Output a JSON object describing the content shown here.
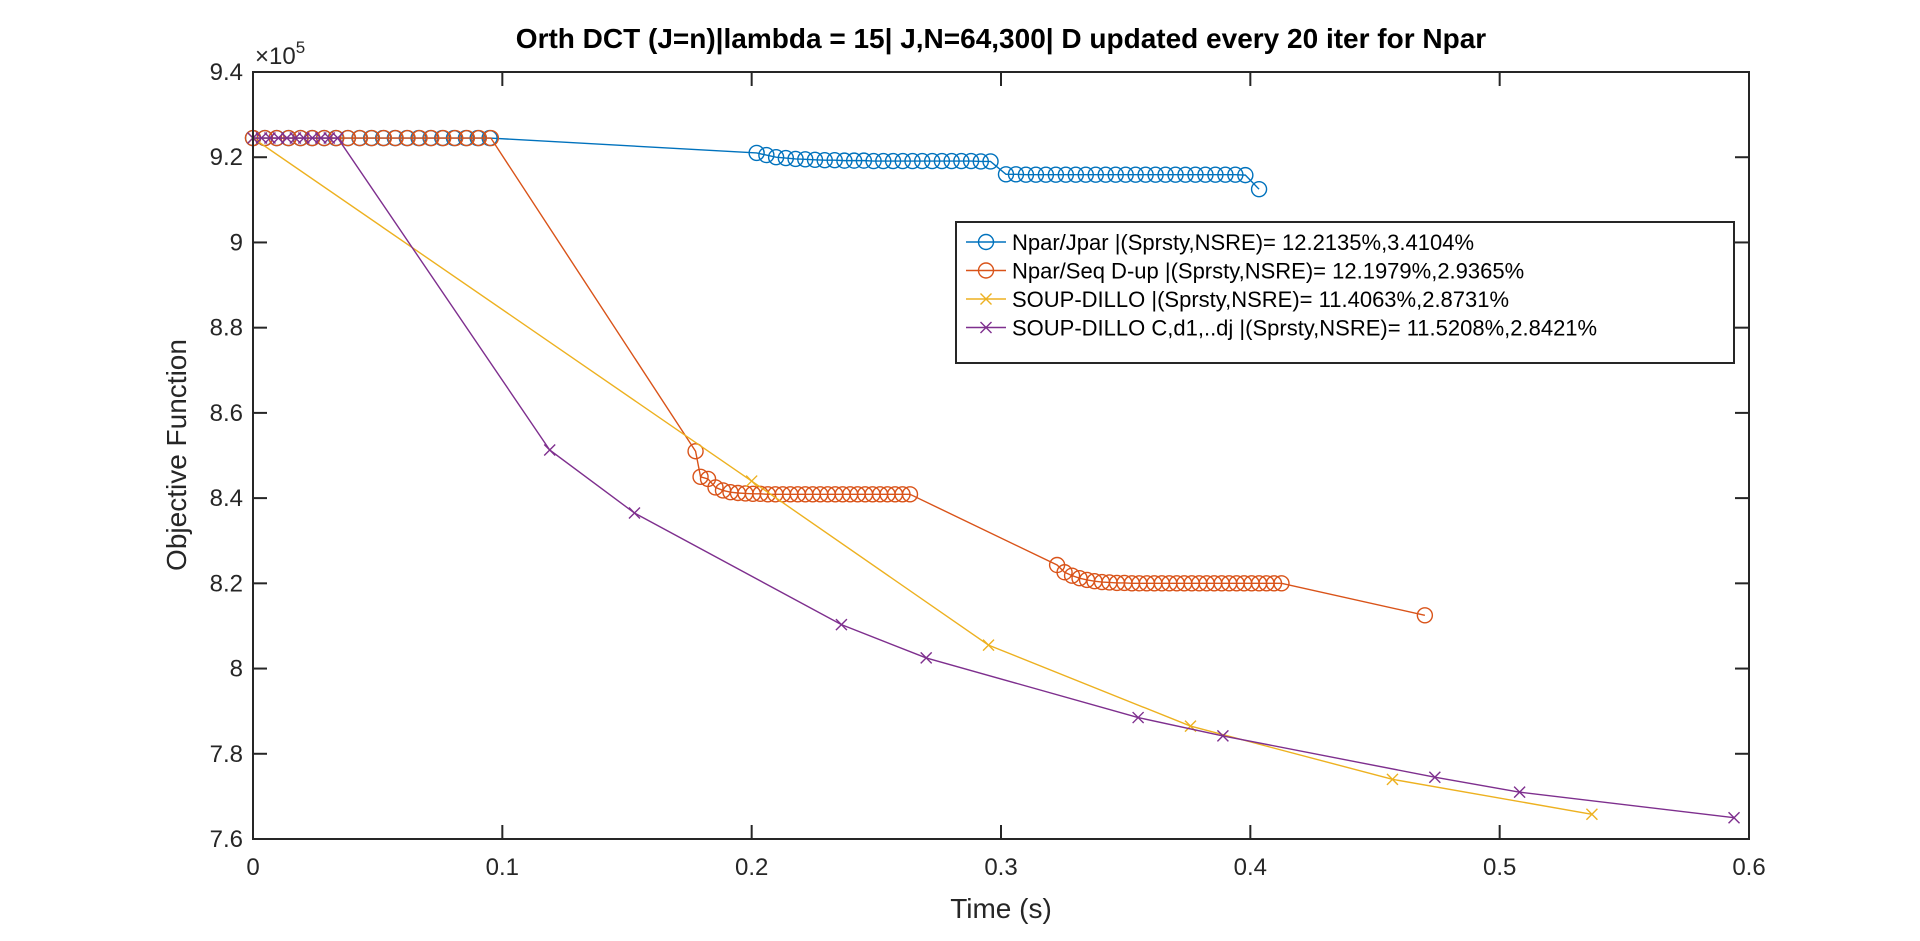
{
  "chart_data": {
    "type": "line",
    "title": "Orth DCT (J=n)|lambda = 15| J,N=64,300| D updated every 20 iter for Npar",
    "xlabel": "Time (s)",
    "ylabel": "Objective Function",
    "y_exponent_label": "×10",
    "y_exponent_power": "5",
    "xlim": [
      0,
      0.6
    ],
    "ylim": [
      7.6,
      9.4
    ],
    "xticks": [
      0,
      0.1,
      0.2,
      0.3,
      0.4,
      0.5,
      0.6
    ],
    "xtick_labels": [
      "0",
      "0.1",
      "0.2",
      "0.3",
      "0.4",
      "0.5",
      "0.6"
    ],
    "yticks": [
      7.6,
      7.8,
      8.0,
      8.2,
      8.4,
      8.6,
      8.8,
      9.0,
      9.2,
      9.4
    ],
    "ytick_labels": [
      "7.6",
      "7.8",
      "8",
      "8.2",
      "8.4",
      "8.6",
      "8.8",
      "9",
      "9.2",
      "9.4"
    ],
    "grid": false,
    "legend_position": "upper-right inside",
    "series": [
      {
        "name": "Npar/Jpar |(Sprsty,NSRE)= 12.2135%,3.4104%",
        "color": "#0072BD",
        "marker": "circle",
        "x": [
          0.0,
          0.0047,
          0.0095,
          0.0142,
          0.019,
          0.0237,
          0.0285,
          0.0332,
          0.038,
          0.0427,
          0.0474,
          0.0522,
          0.0569,
          0.0617,
          0.0664,
          0.0712,
          0.0759,
          0.0806,
          0.0854,
          0.0901,
          0.0949,
          0.202,
          0.2059,
          0.2098,
          0.2137,
          0.2176,
          0.2215,
          0.2254,
          0.2293,
          0.2333,
          0.2372,
          0.2411,
          0.245,
          0.2489,
          0.2528,
          0.2567,
          0.2606,
          0.2645,
          0.2684,
          0.2724,
          0.2763,
          0.2802,
          0.2841,
          0.288,
          0.2919,
          0.2958,
          0.302,
          0.306,
          0.31,
          0.314,
          0.318,
          0.322,
          0.326,
          0.33,
          0.334,
          0.338,
          0.342,
          0.346,
          0.35,
          0.354,
          0.358,
          0.362,
          0.366,
          0.37,
          0.374,
          0.378,
          0.382,
          0.386,
          0.39,
          0.394,
          0.398,
          0.4035
        ],
        "y": [
          9.245,
          9.245,
          9.245,
          9.245,
          9.245,
          9.245,
          9.245,
          9.245,
          9.245,
          9.245,
          9.245,
          9.245,
          9.245,
          9.245,
          9.245,
          9.245,
          9.245,
          9.245,
          9.245,
          9.245,
          9.245,
          9.21,
          9.205,
          9.2,
          9.198,
          9.196,
          9.195,
          9.194,
          9.193,
          9.193,
          9.192,
          9.192,
          9.192,
          9.191,
          9.191,
          9.191,
          9.191,
          9.191,
          9.191,
          9.191,
          9.191,
          9.191,
          9.191,
          9.191,
          9.19,
          9.19,
          9.16,
          9.16,
          9.159,
          9.159,
          9.159,
          9.159,
          9.159,
          9.159,
          9.159,
          9.159,
          9.159,
          9.159,
          9.159,
          9.159,
          9.159,
          9.159,
          9.159,
          9.159,
          9.159,
          9.159,
          9.159,
          9.159,
          9.159,
          9.159,
          9.158,
          9.125
        ]
      },
      {
        "name": "Npar/Seq D-up |(Sprsty,NSRE)= 12.1979%,2.9365%",
        "color": "#D95319",
        "marker": "circle",
        "x": [
          0.0,
          0.0048,
          0.0095,
          0.0143,
          0.0191,
          0.0238,
          0.0286,
          0.0334,
          0.0381,
          0.0429,
          0.0477,
          0.0525,
          0.0572,
          0.062,
          0.0668,
          0.0715,
          0.0763,
          0.0811,
          0.0858,
          0.0906,
          0.0954,
          0.1775,
          0.1795,
          0.1825,
          0.1855,
          0.1885,
          0.1915,
          0.1945,
          0.1975,
          0.2005,
          0.2035,
          0.2065,
          0.2095,
          0.2125,
          0.2155,
          0.2185,
          0.2215,
          0.2245,
          0.2275,
          0.2305,
          0.2335,
          0.2365,
          0.2395,
          0.2425,
          0.2455,
          0.2485,
          0.2515,
          0.2545,
          0.2575,
          0.2605,
          0.2635,
          0.3225,
          0.3255,
          0.3285,
          0.3315,
          0.3345,
          0.3375,
          0.3405,
          0.3435,
          0.3465,
          0.3495,
          0.3525,
          0.3555,
          0.3585,
          0.3615,
          0.3645,
          0.3675,
          0.3705,
          0.3735,
          0.3765,
          0.3795,
          0.3825,
          0.3855,
          0.3885,
          0.3915,
          0.3945,
          0.3975,
          0.4005,
          0.4035,
          0.4065,
          0.4095,
          0.4125,
          0.47
        ],
        "y": [
          9.245,
          9.245,
          9.245,
          9.245,
          9.245,
          9.245,
          9.245,
          9.245,
          9.245,
          9.245,
          9.245,
          9.245,
          9.245,
          9.245,
          9.245,
          9.245,
          9.245,
          9.245,
          9.245,
          9.245,
          9.245,
          8.51,
          8.45,
          8.445,
          8.425,
          8.418,
          8.414,
          8.412,
          8.411,
          8.41,
          8.41,
          8.409,
          8.409,
          8.409,
          8.409,
          8.409,
          8.409,
          8.409,
          8.409,
          8.409,
          8.409,
          8.409,
          8.409,
          8.409,
          8.409,
          8.409,
          8.409,
          8.409,
          8.409,
          8.409,
          8.409,
          8.243,
          8.226,
          8.218,
          8.212,
          8.208,
          8.205,
          8.203,
          8.202,
          8.201,
          8.201,
          8.2,
          8.2,
          8.2,
          8.2,
          8.2,
          8.2,
          8.2,
          8.2,
          8.2,
          8.2,
          8.2,
          8.2,
          8.2,
          8.2,
          8.2,
          8.2,
          8.2,
          8.2,
          8.2,
          8.2,
          8.2,
          8.125
        ]
      },
      {
        "name": "SOUP-DILLO |(Sprsty,NSRE)= 11.4063%,2.8731%",
        "color": "#EDB120",
        "marker": "x",
        "x": [
          0.0,
          0.2,
          0.295,
          0.376,
          0.457,
          0.537
        ],
        "y": [
          9.245,
          8.44,
          8.055,
          7.865,
          7.74,
          7.658
        ]
      },
      {
        "name": "SOUP-DILLO C,d1,..dj |(Sprsty,NSRE)= 11.5208%,2.8421%",
        "color": "#7E2F8E",
        "marker": "x",
        "x": [
          0.0,
          0.0034,
          0.0068,
          0.0102,
          0.0136,
          0.017,
          0.0204,
          0.0238,
          0.0272,
          0.0306,
          0.034,
          0.119,
          0.153,
          0.236,
          0.27,
          0.355,
          0.389,
          0.474,
          0.508,
          0.594
        ],
        "y": [
          9.245,
          9.245,
          9.245,
          9.245,
          9.245,
          9.245,
          9.245,
          9.245,
          9.245,
          9.245,
          9.245,
          8.513,
          8.365,
          8.103,
          8.025,
          7.885,
          7.842,
          7.745,
          7.71,
          7.65
        ]
      }
    ]
  }
}
